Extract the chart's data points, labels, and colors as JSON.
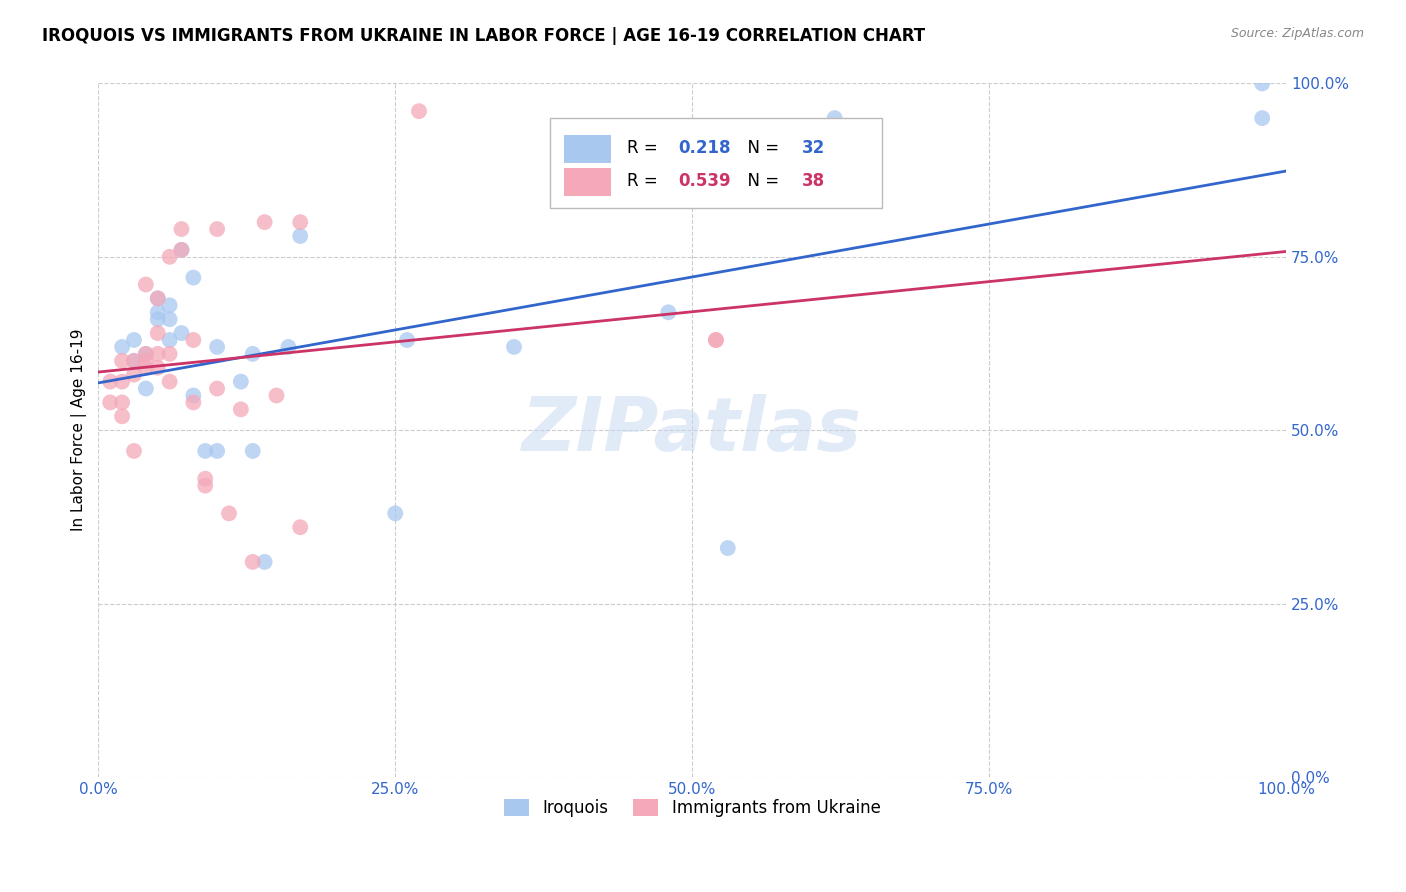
{
  "title": "IROQUOIS VS IMMIGRANTS FROM UKRAINE IN LABOR FORCE | AGE 16-19 CORRELATION CHART",
  "source": "Source: ZipAtlas.com",
  "ylabel": "In Labor Force | Age 16-19",
  "xlim": [
    0.0,
    1.0
  ],
  "ylim": [
    0.0,
    1.0
  ],
  "xticks": [
    0.0,
    0.25,
    0.5,
    0.75,
    1.0
  ],
  "yticks": [
    0.0,
    0.25,
    0.5,
    0.75,
    1.0
  ],
  "xticklabels": [
    "0.0%",
    "25.0%",
    "50.0%",
    "75.0%",
    "100.0%"
  ],
  "yticklabels": [
    "0.0%",
    "25.0%",
    "50.0%",
    "75.0%",
    "100.0%"
  ],
  "blue_color": "#A8C8F0",
  "pink_color": "#F4A8B8",
  "blue_line_color": "#3366CC",
  "pink_line_color": "#CC3366",
  "tick_color": "#3366CC",
  "watermark": "ZIPatlas",
  "legend_blue_R": "0.218",
  "legend_blue_N": "32",
  "legend_pink_R": "0.539",
  "legend_pink_N": "38",
  "blue_scatter_x": [
    0.02,
    0.03,
    0.03,
    0.04,
    0.04,
    0.05,
    0.05,
    0.05,
    0.06,
    0.06,
    0.06,
    0.07,
    0.07,
    0.08,
    0.08,
    0.09,
    0.1,
    0.1,
    0.12,
    0.13,
    0.13,
    0.14,
    0.16,
    0.17,
    0.25,
    0.26,
    0.35,
    0.48,
    0.53,
    0.62,
    0.98,
    0.98
  ],
  "blue_scatter_y": [
    0.62,
    0.6,
    0.63,
    0.56,
    0.61,
    0.66,
    0.67,
    0.69,
    0.63,
    0.66,
    0.68,
    0.64,
    0.76,
    0.55,
    0.72,
    0.47,
    0.47,
    0.62,
    0.57,
    0.61,
    0.47,
    0.31,
    0.62,
    0.78,
    0.38,
    0.63,
    0.62,
    0.67,
    0.33,
    0.95,
    0.95,
    1.0
  ],
  "pink_scatter_x": [
    0.01,
    0.01,
    0.02,
    0.02,
    0.02,
    0.02,
    0.03,
    0.03,
    0.03,
    0.04,
    0.04,
    0.04,
    0.04,
    0.05,
    0.05,
    0.05,
    0.05,
    0.06,
    0.06,
    0.06,
    0.07,
    0.07,
    0.08,
    0.08,
    0.09,
    0.09,
    0.1,
    0.1,
    0.11,
    0.12,
    0.13,
    0.14,
    0.15,
    0.17,
    0.17,
    0.27,
    0.52,
    0.52
  ],
  "pink_scatter_y": [
    0.54,
    0.57,
    0.52,
    0.54,
    0.57,
    0.6,
    0.58,
    0.6,
    0.47,
    0.59,
    0.6,
    0.61,
    0.71,
    0.59,
    0.61,
    0.64,
    0.69,
    0.57,
    0.61,
    0.75,
    0.76,
    0.79,
    0.54,
    0.63,
    0.42,
    0.43,
    0.56,
    0.79,
    0.38,
    0.53,
    0.31,
    0.8,
    0.55,
    0.8,
    0.36,
    0.96,
    0.63,
    0.63
  ],
  "background_color": "#FFFFFF",
  "grid_color": "#CCCCCC"
}
